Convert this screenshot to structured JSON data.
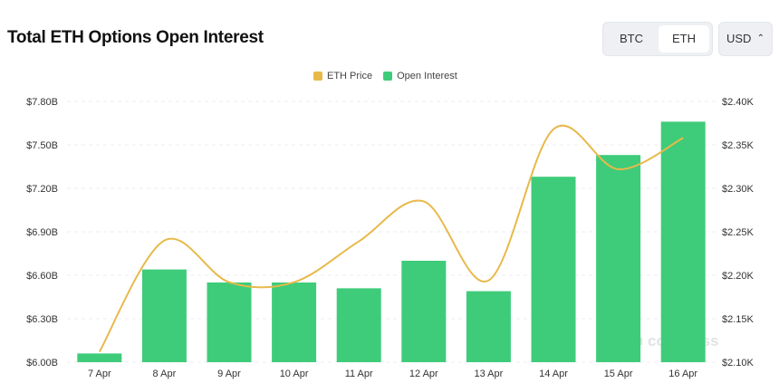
{
  "header": {
    "title": "Total ETH Options Open Interest",
    "tabs": [
      "BTC",
      "ETH"
    ],
    "active_tab": "ETH",
    "currency": "USD"
  },
  "colors": {
    "price": "#e8b94a",
    "oi": "#3ecc7a"
  },
  "watermark": "coinglass",
  "chart_data": {
    "type": "bar+line",
    "categories": [
      "7 Apr",
      "8 Apr",
      "9 Apr",
      "10 Apr",
      "11 Apr",
      "12 Apr",
      "13 Apr",
      "14 Apr",
      "15 Apr",
      "16 Apr"
    ],
    "series": [
      {
        "name": "Open Interest",
        "type": "bar",
        "axis": "left",
        "values": [
          6.06,
          6.64,
          6.55,
          6.55,
          6.51,
          6.7,
          6.49,
          7.28,
          7.43,
          7.66
        ]
      },
      {
        "name": "ETH Price",
        "type": "line",
        "axis": "right",
        "values": [
          2.112,
          2.24,
          2.192,
          2.192,
          2.239,
          2.285,
          2.194,
          2.368,
          2.322,
          2.358
        ]
      }
    ],
    "left_axis": {
      "ylim": [
        6.0,
        7.8
      ],
      "ticks": [
        "$6.00B",
        "$6.30B",
        "$6.60B",
        "$6.90B",
        "$7.20B",
        "$7.50B",
        "$7.80B"
      ]
    },
    "right_axis": {
      "ylim": [
        2.1,
        2.4
      ],
      "ticks": [
        "$2.10K",
        "$2.15K",
        "$2.20K",
        "$2.25K",
        "$2.30K",
        "$2.35K",
        "$2.40K"
      ]
    },
    "legend": [
      "ETH Price",
      "Open Interest"
    ],
    "legend_position": "top",
    "grid": true
  }
}
